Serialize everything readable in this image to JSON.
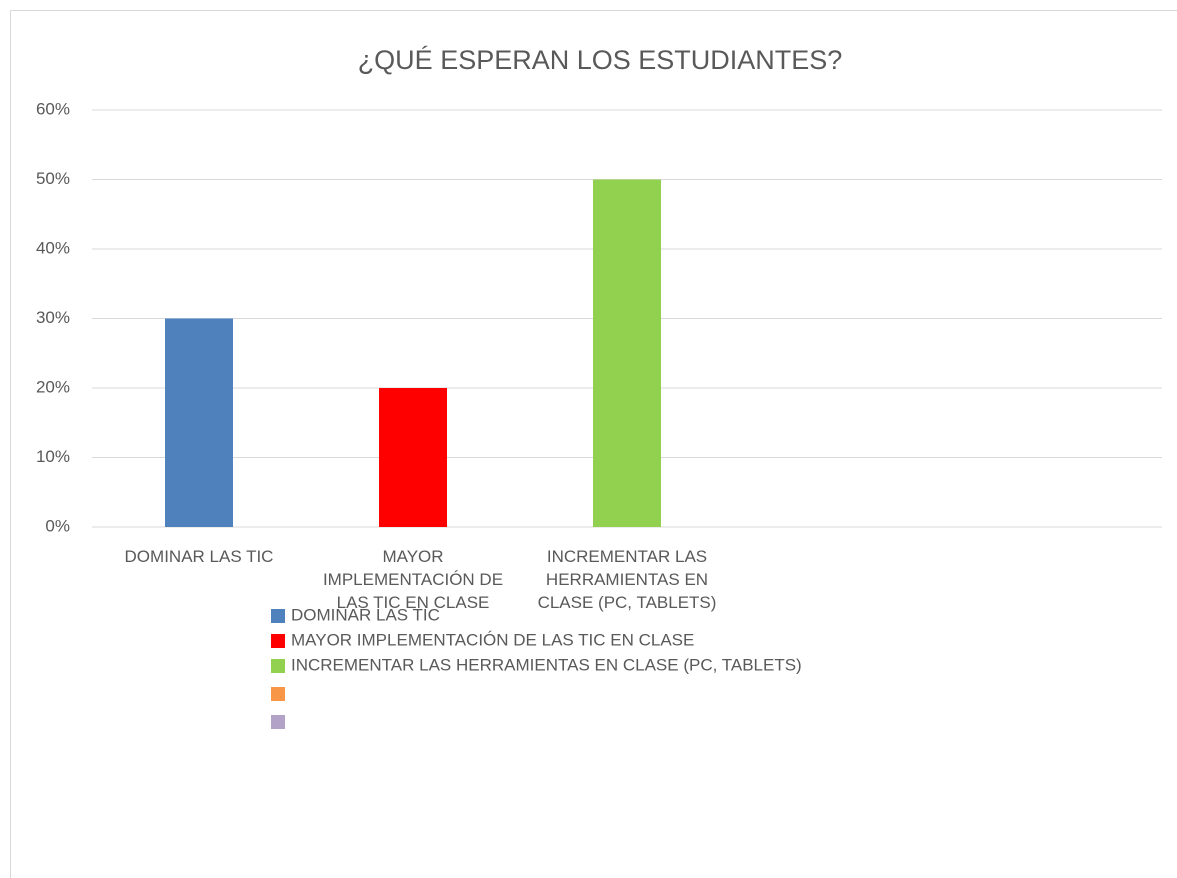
{
  "chart_data": {
    "type": "bar",
    "title": "¿QUÉ ESPERAN LOS ESTUDIANTES?",
    "categories": [
      "DOMINAR LAS TIC",
      "MAYOR IMPLEMENTACIÓN DE LAS TIC EN CLASE",
      "INCREMENTAR LAS HERRAMIENTAS EN CLASE (PC, TABLETS)",
      null,
      null
    ],
    "values": [
      30,
      20,
      50,
      null,
      null
    ],
    "colors": [
      "#4f81bd",
      "#ff0000",
      "#92d050",
      "#f79646",
      "#b3a2c7"
    ],
    "ylim": [
      0,
      60
    ],
    "yticks": [
      {
        "value": 0,
        "label": "0%"
      },
      {
        "value": 10,
        "label": "10%"
      },
      {
        "value": 20,
        "label": "20%"
      },
      {
        "value": 30,
        "label": "30%"
      },
      {
        "value": 40,
        "label": "40%"
      },
      {
        "value": 50,
        "label": "50%"
      },
      {
        "value": 60,
        "label": "60%"
      }
    ],
    "grid": true,
    "legend": "bottom"
  }
}
